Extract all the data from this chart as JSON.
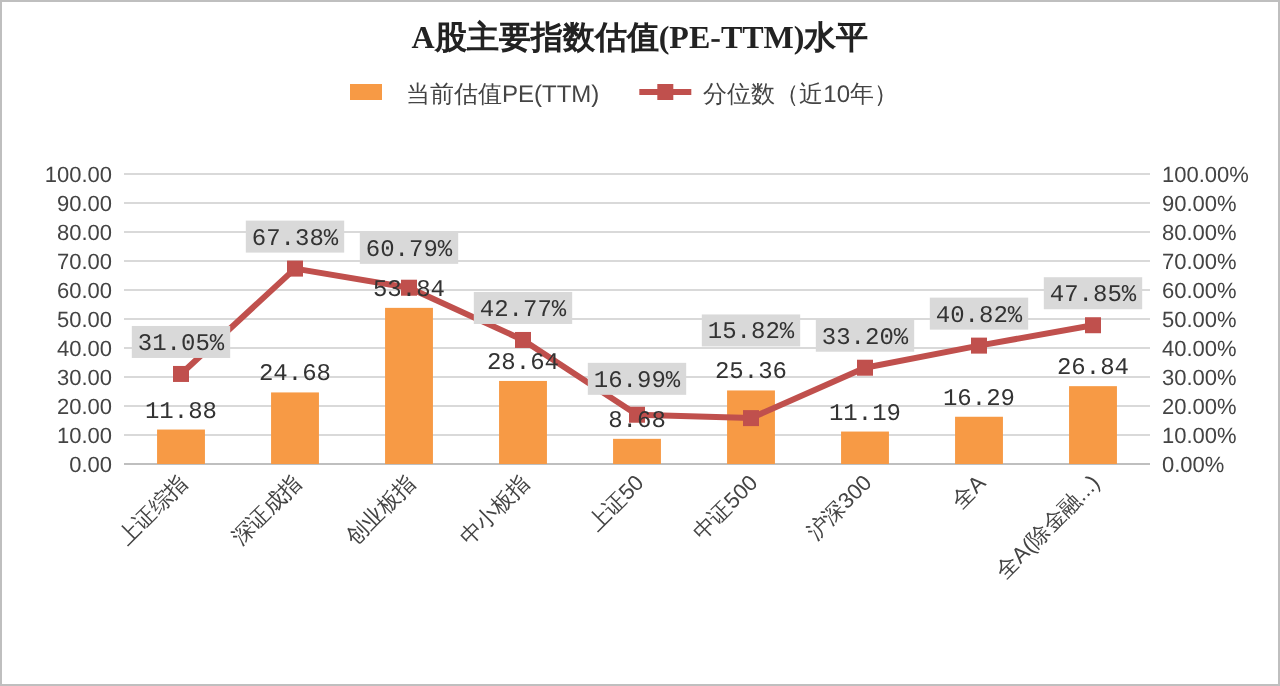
{
  "chart_data": {
    "type": "bar",
    "title": "A股主要指数估值(PE-TTM)水平",
    "categories": [
      "上证综指",
      "深证成指",
      "创业板指",
      "中小板指",
      "上证50",
      "中证500",
      "沪深300",
      "全A",
      "全A(除金融...)"
    ],
    "series": [
      {
        "name": "当前估值PE(TTM)",
        "type": "bar",
        "color": "#f79a45",
        "values": [
          11.88,
          24.68,
          53.84,
          28.64,
          8.68,
          25.36,
          11.19,
          16.29,
          26.84
        ],
        "value_labels": [
          "11.88",
          "24.68",
          "53.84",
          "28.64",
          "8.68",
          "25.36",
          "11.19",
          "16.29",
          "26.84"
        ]
      },
      {
        "name": "分位数（近10年）",
        "type": "line",
        "axis": "y2",
        "color": "#c0504d",
        "marker": "square",
        "values": [
          31.05,
          67.38,
          60.79,
          42.77,
          16.99,
          15.82,
          33.2,
          40.82,
          47.85
        ],
        "value_labels": [
          "31.05%",
          "67.38%",
          "60.79%",
          "42.77%",
          "16.99%",
          "15.82%",
          "33.20%",
          "40.82%",
          "47.85%"
        ]
      }
    ],
    "ylim": [
      0,
      100
    ],
    "yticks": [
      {
        "value": 0,
        "label": "0.00"
      },
      {
        "value": 10,
        "label": "10.00"
      },
      {
        "value": 20,
        "label": "20.00"
      },
      {
        "value": 30,
        "label": "30.00"
      },
      {
        "value": 40,
        "label": "40.00"
      },
      {
        "value": 50,
        "label": "50.00"
      },
      {
        "value": 60,
        "label": "60.00"
      },
      {
        "value": 70,
        "label": "70.00"
      },
      {
        "value": 80,
        "label": "80.00"
      },
      {
        "value": 90,
        "label": "90.00"
      },
      {
        "value": 100,
        "label": "100.00"
      }
    ],
    "y2lim": [
      0,
      100
    ],
    "y2ticks": [
      {
        "value": 0,
        "label": "0.00%"
      },
      {
        "value": 10,
        "label": "10.00%"
      },
      {
        "value": 20,
        "label": "20.00%"
      },
      {
        "value": 30,
        "label": "30.00%"
      },
      {
        "value": 40,
        "label": "40.00%"
      },
      {
        "value": 50,
        "label": "50.00%"
      },
      {
        "value": 60,
        "label": "60.00%"
      },
      {
        "value": 70,
        "label": "70.00%"
      },
      {
        "value": 80,
        "label": "80.00%"
      },
      {
        "value": 90,
        "label": "90.00%"
      },
      {
        "value": 100,
        "label": "100.00%"
      }
    ],
    "grid": "y",
    "legend": "top"
  }
}
